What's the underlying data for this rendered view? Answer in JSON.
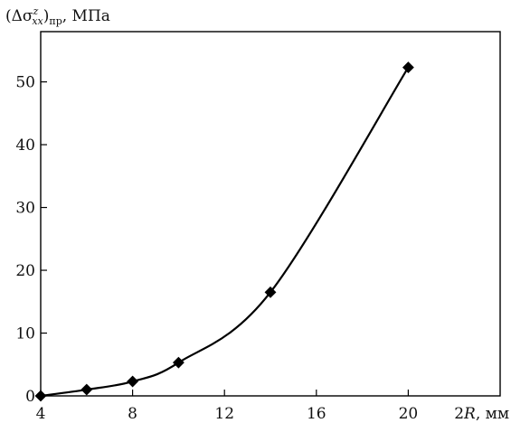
{
  "chart_data": {
    "type": "line",
    "title": "",
    "ylabel": {
      "main": "(Δσ",
      "superscript": "z",
      "subscript": "xx",
      "suffix": ")",
      "post_subscript": "пр",
      "unit": ", МПа"
    },
    "xlabel": {
      "main": "2",
      "italic_var": "R",
      "unit": ", мм"
    },
    "xlim": [
      4,
      24
    ],
    "ylim": [
      0,
      58
    ],
    "xticks": [
      4,
      8,
      12,
      16,
      20
    ],
    "yticks": [
      0,
      10,
      20,
      30,
      40,
      50
    ],
    "series": [
      {
        "x": [
          4,
          6,
          8,
          10,
          14,
          20
        ],
        "values": [
          0,
          1,
          2.3,
          5.3,
          16.5,
          52.3
        ],
        "marker": "diamond",
        "color": "#000000"
      }
    ],
    "grid": false,
    "legend": "none"
  }
}
